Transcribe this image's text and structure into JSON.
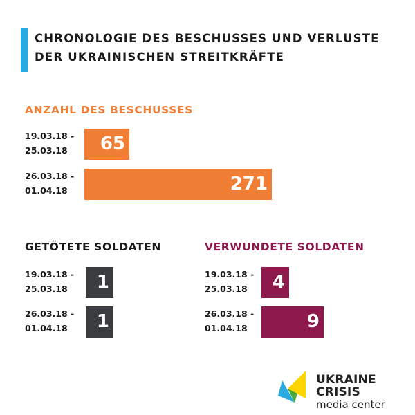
{
  "header": {
    "title_line1": "Chronologie des Beschusses und Verluste",
    "title_line2": "der ukrainischen Streitkräfte"
  },
  "colors": {
    "accent": "#29abe2",
    "shelling": "#f07f35",
    "killed": "#3b3c40",
    "wounded": "#8e1a4d"
  },
  "labels": {
    "p1_line1": "19.03.18 -",
    "p1_line2": "25.03.18",
    "p2_line1": "26.03.18 -",
    "p2_line2": "01.04.18"
  },
  "chart_data": [
    {
      "type": "bar",
      "title": "Anzahl des Beschusses",
      "categories": [
        "19.03.18 - 25.03.18",
        "26.03.18 - 01.04.18"
      ],
      "values": [
        65,
        271
      ],
      "labels": [
        "65",
        "271"
      ]
    },
    {
      "type": "bar",
      "title": "Getötete Soldaten",
      "categories": [
        "19.03.18 - 25.03.18",
        "26.03.18 - 01.04.18"
      ],
      "values": [
        1,
        1
      ],
      "labels": [
        "1",
        "1"
      ]
    },
    {
      "type": "bar",
      "title": "Verwundete Soldaten",
      "categories": [
        "19.03.18 - 25.03.18",
        "26.03.18 - 01.04.18"
      ],
      "values": [
        4,
        9
      ],
      "labels": [
        "4",
        "9"
      ]
    }
  ],
  "logo": {
    "name_line1": "UKRAINE CRISIS",
    "name_line2": "media center",
    "icon": "ucmc-logo-icon"
  }
}
